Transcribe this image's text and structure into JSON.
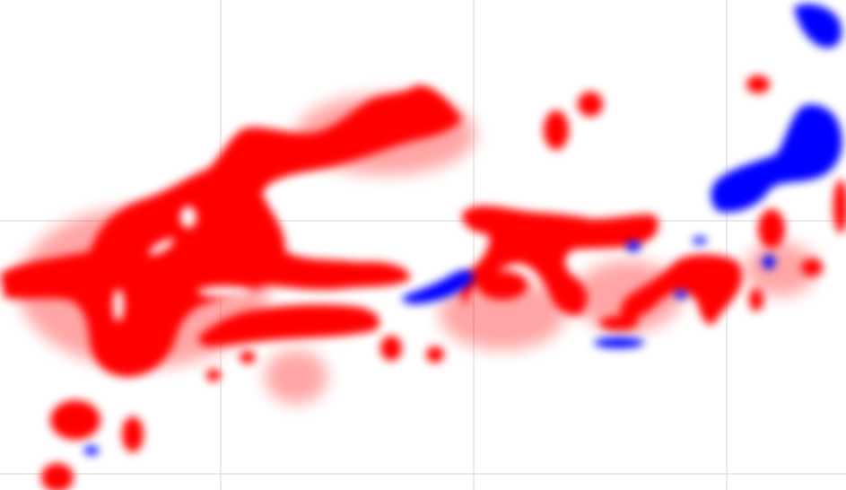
{
  "map": {
    "type": "heat-overlay",
    "grid": true,
    "background_color": "#ffffff",
    "grid_color": "#d6d6d6",
    "colors": {
      "primary_layer": "#ff0000",
      "secondary_layer": "#0000ff"
    },
    "layers": [
      {
        "key": "red-regions",
        "color": "#ff0000"
      },
      {
        "key": "blue-regions",
        "color": "#0000ff"
      }
    ]
  }
}
